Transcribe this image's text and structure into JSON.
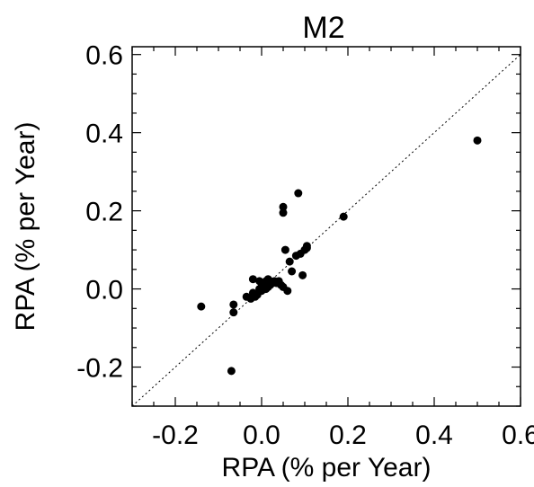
{
  "chart_data": {
    "type": "scatter",
    "title": "M2",
    "xlabel": "RPA (% per Year)",
    "ylabel": "RPA (% per Year)",
    "xlim": [
      -0.3,
      0.6
    ],
    "ylim": [
      -0.3,
      0.62
    ],
    "xticks": [
      -0.2,
      0.0,
      0.2,
      0.4,
      0.6
    ],
    "xtick_labels": [
      "-0.2",
      "0.0",
      "0.2",
      "0.4",
      "0.6"
    ],
    "yticks": [
      -0.2,
      0.0,
      0.2,
      0.4,
      0.6
    ],
    "ytick_labels": [
      "-0.2",
      "0.0",
      "0.2",
      "0.4",
      "0.6"
    ],
    "grid": false,
    "reference_line": "y = x (dotted)",
    "point_color": "#000000",
    "series": [
      {
        "x": [
          -0.14,
          -0.07,
          -0.065,
          -0.065,
          -0.035,
          -0.025,
          -0.02,
          -0.015,
          -0.01,
          -0.005,
          0.0,
          0.0,
          0.005,
          0.01,
          0.01,
          0.015,
          0.02,
          0.02,
          0.025,
          0.03,
          0.035,
          0.04,
          0.045,
          0.05,
          0.05,
          0.05,
          0.055,
          0.06,
          0.065,
          0.07,
          0.08,
          0.085,
          0.09,
          0.095,
          0.1,
          0.105,
          0.105,
          0.19,
          0.5,
          -0.02,
          0.0,
          -0.005,
          0.015
        ],
        "y": [
          -0.045,
          -0.21,
          -0.04,
          -0.06,
          -0.02,
          -0.025,
          0.025,
          -0.02,
          -0.015,
          0.02,
          0.005,
          -0.005,
          0.01,
          0.02,
          0.0,
          0.005,
          0.02,
          0.01,
          0.015,
          0.02,
          0.015,
          0.02,
          0.01,
          0.21,
          0.195,
          0.005,
          0.1,
          -0.005,
          0.07,
          0.045,
          0.085,
          0.245,
          0.09,
          0.035,
          0.1,
          0.11,
          0.105,
          0.185,
          0.38,
          -0.01,
          0.015,
          0.0,
          0.025
        ]
      }
    ]
  }
}
